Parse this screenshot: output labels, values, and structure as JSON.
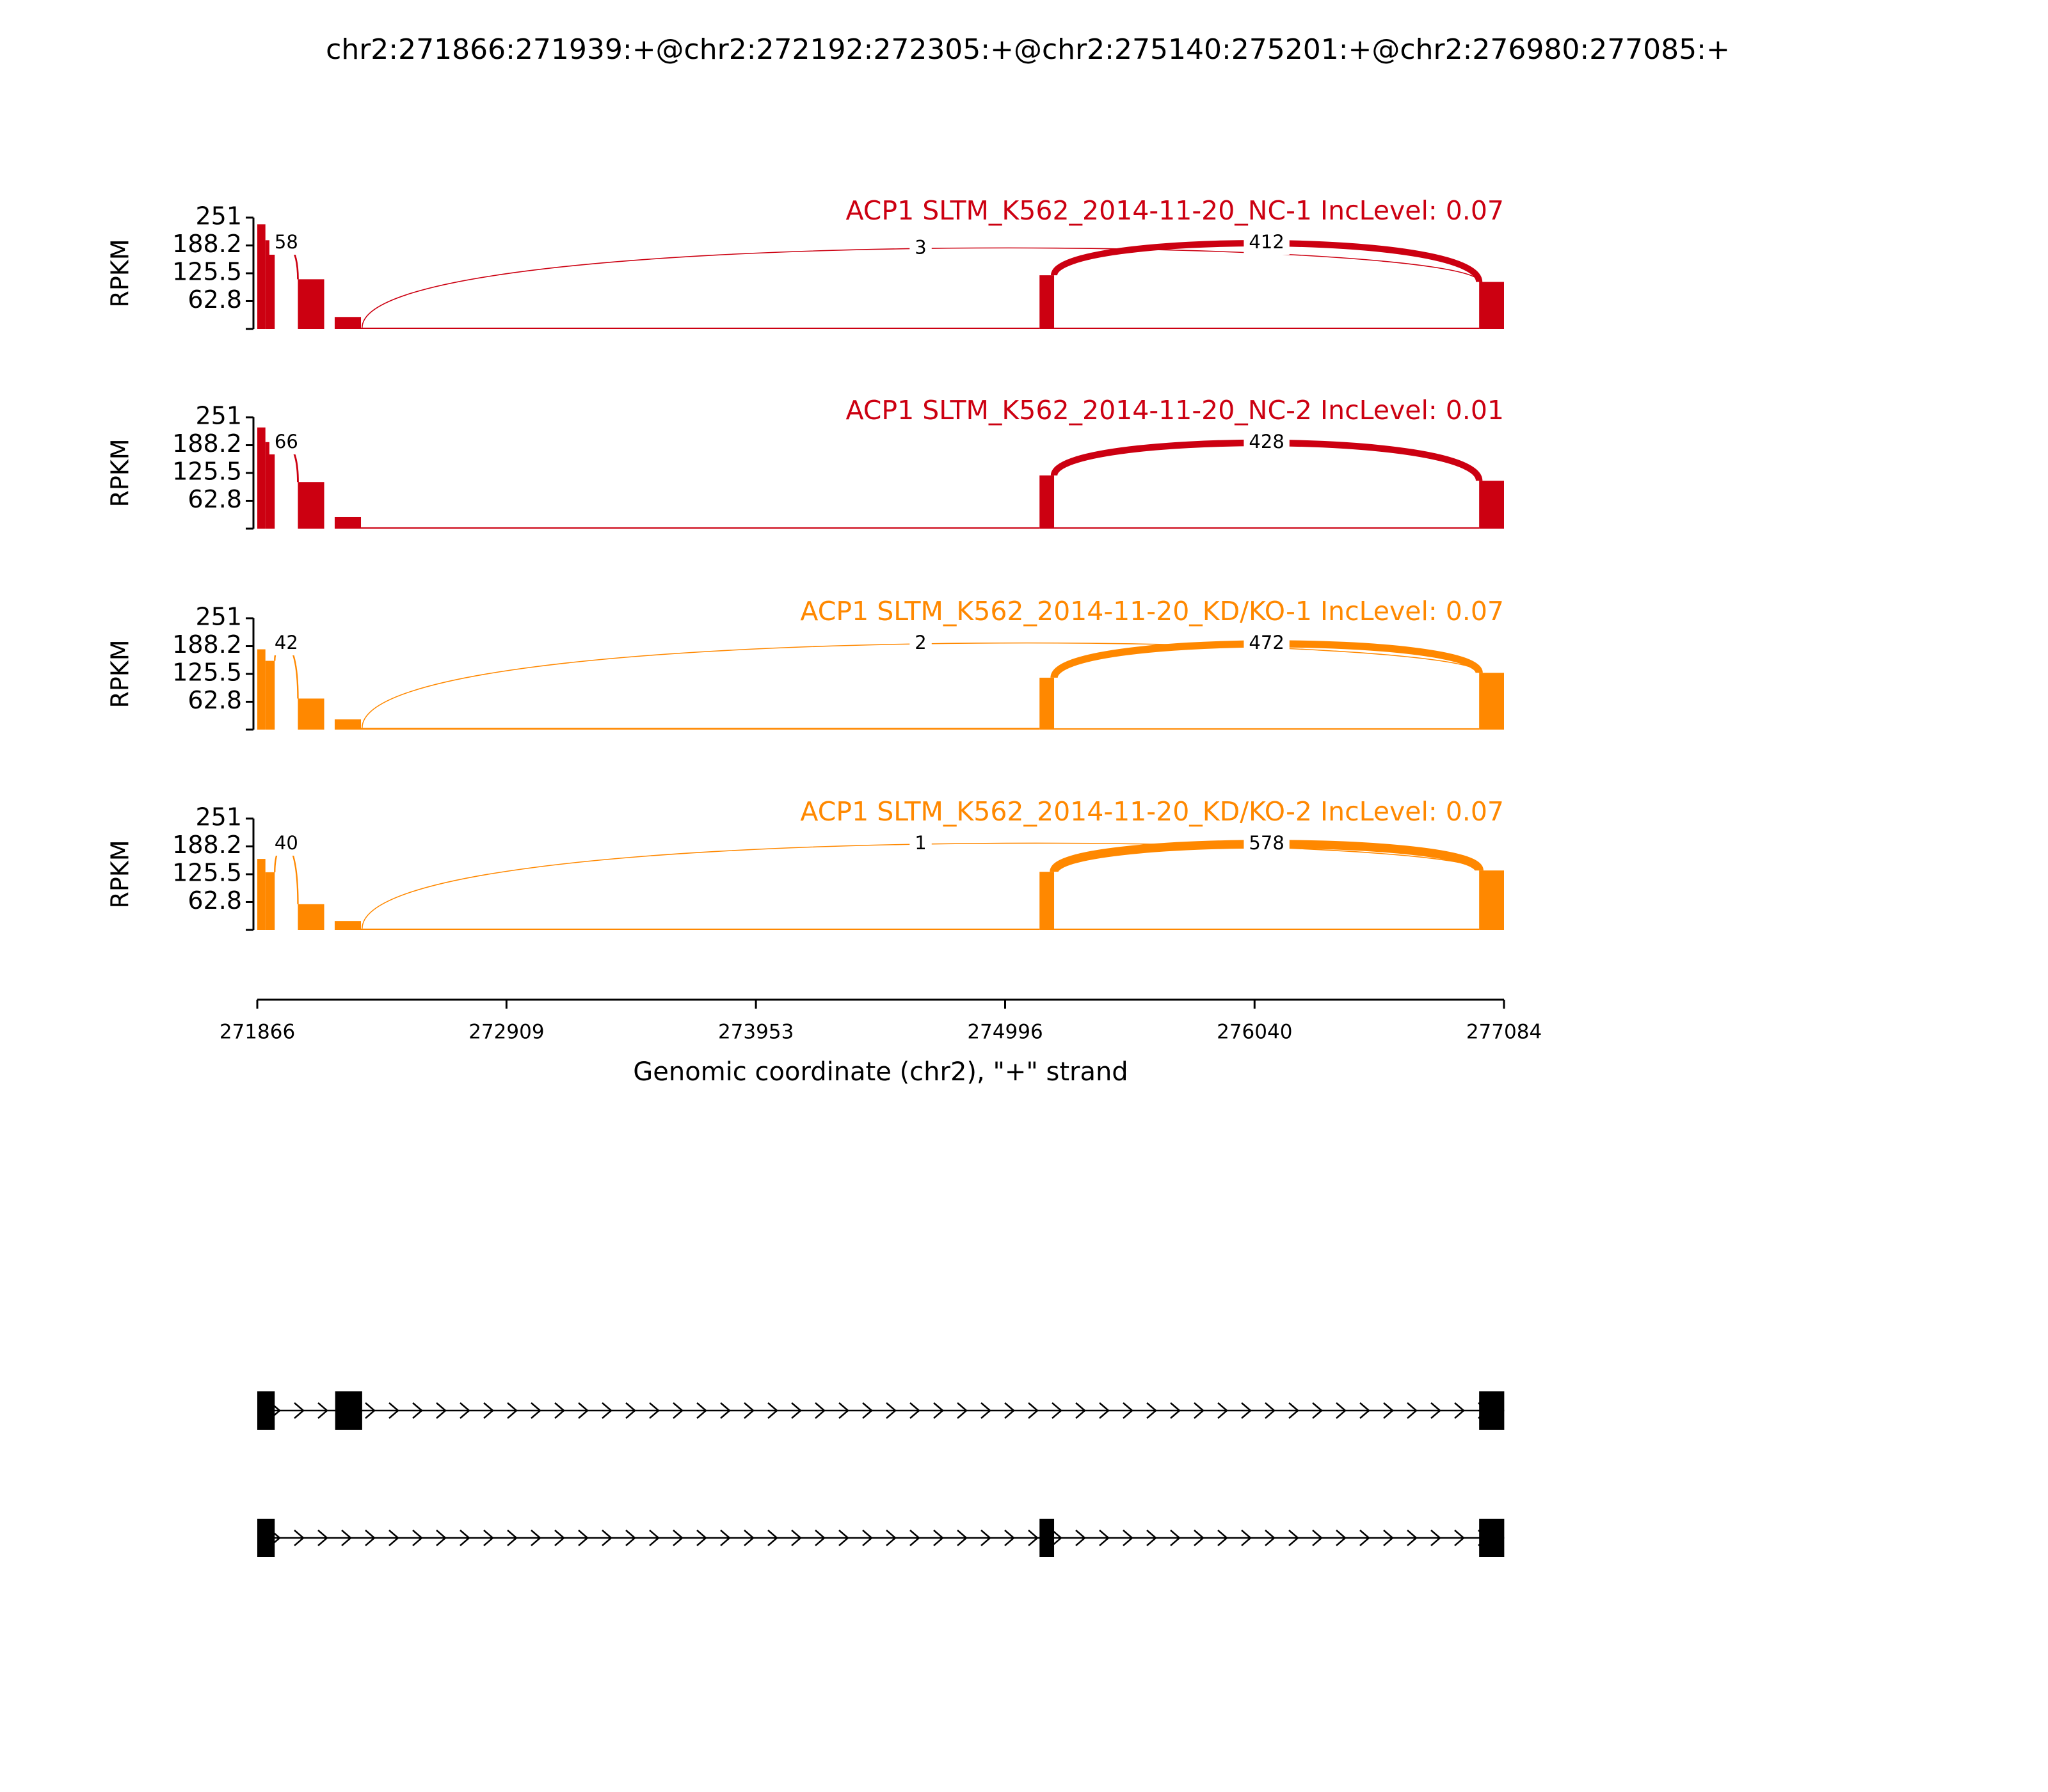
{
  "chart_data": {
    "type": "sashimi",
    "title": "chr2:271866:271939:+@chr2:272192:272305:+@chr2:275140:275201:+@chr2:276980:277085:+",
    "xlim": [
      271866,
      277084
    ],
    "xticks": [
      271866,
      272909,
      273953,
      274996,
      276040,
      277084
    ],
    "xlabel": "Genomic coordinate (chr2), \"+\" strand",
    "panels": [
      {
        "label": "ACP1 SLTM_K562_2014-11-20_NC-1 IncLevel: 0.07",
        "color": "#CC0011",
        "ylabel": "RPKM",
        "ylim": [
          0,
          251
        ],
        "yticks": [
          62.8,
          125.5,
          188.2,
          251
        ],
        "coverage": {
          "start": [
            271866,
            271900,
            271939,
            272036,
            272146,
            272190,
            272300,
            275140,
            275201,
            276980
          ],
          "end": [
            271900,
            271939,
            272036,
            272146,
            272190,
            272300,
            275140,
            275201,
            276980,
            277084
          ],
          "values": [
            236,
            200,
            0,
            112,
            0,
            27,
            3,
            121,
            3,
            106
          ]
        },
        "junctions": [
          {
            "start": 271939,
            "end": 272036,
            "count": 58
          },
          {
            "start": 272305,
            "end": 276980,
            "count": 3
          },
          {
            "start": 275201,
            "end": 276980,
            "count": 412
          }
        ]
      },
      {
        "label": "ACP1 SLTM_K562_2014-11-20_NC-2 IncLevel: 0.01",
        "color": "#CC0011",
        "ylabel": "RPKM",
        "ylim": [
          0,
          251
        ],
        "yticks": [
          62.8,
          125.5,
          188.2,
          251
        ],
        "coverage": {
          "start": [
            271866,
            271900,
            271939,
            272036,
            272146,
            272190,
            272300,
            275140,
            275201,
            276980
          ],
          "end": [
            271900,
            271939,
            272036,
            272146,
            272190,
            272300,
            275140,
            275201,
            276980,
            277084
          ],
          "values": [
            228,
            195,
            0,
            105,
            0,
            26,
            3,
            120,
            3,
            108
          ]
        },
        "junctions": [
          {
            "start": 271939,
            "end": 272036,
            "count": 66
          },
          {
            "start": 275201,
            "end": 276980,
            "count": 428
          }
        ]
      },
      {
        "label": "ACP1 SLTM_K562_2014-11-20_KD/KO-1 IncLevel: 0.07",
        "color": "#FF8800",
        "ylabel": "RPKM",
        "ylim": [
          0,
          251
        ],
        "yticks": [
          62.8,
          125.5,
          188.2,
          251
        ],
        "coverage": {
          "start": [
            271866,
            271900,
            271939,
            272036,
            272146,
            272190,
            272300,
            275140,
            275201,
            276980
          ],
          "end": [
            271900,
            271939,
            272036,
            272146,
            272190,
            272300,
            275140,
            275201,
            276980,
            277084
          ],
          "values": [
            181,
            155,
            0,
            70,
            0,
            23,
            4,
            117,
            3,
            128
          ]
        },
        "junctions": [
          {
            "start": 271939,
            "end": 272036,
            "count": 42
          },
          {
            "start": 272305,
            "end": 276980,
            "count": 2
          },
          {
            "start": 275201,
            "end": 276980,
            "count": 472
          }
        ]
      },
      {
        "label": "ACP1 SLTM_K562_2014-11-20_KD/KO-2 IncLevel: 0.07",
        "color": "#FF8800",
        "ylabel": "RPKM",
        "ylim": [
          0,
          251
        ],
        "yticks": [
          62.8,
          125.5,
          188.2,
          251
        ],
        "coverage": {
          "start": [
            271866,
            271900,
            271939,
            272036,
            272146,
            272190,
            272300,
            275140,
            275201,
            276980
          ],
          "end": [
            271900,
            271939,
            272036,
            272146,
            272190,
            272300,
            275140,
            275201,
            276980,
            277084
          ],
          "values": [
            160,
            130,
            0,
            58,
            0,
            20,
            3,
            131,
            3,
            134
          ]
        },
        "junctions": [
          {
            "start": 271939,
            "end": 272036,
            "count": 40
          },
          {
            "start": 272305,
            "end": 276980,
            "count": 1
          },
          {
            "start": 275201,
            "end": 276980,
            "count": 578
          }
        ]
      }
    ],
    "transcripts": [
      {
        "exons": [
          [
            271866,
            271939
          ],
          [
            272192,
            272305
          ],
          [
            276980,
            277085
          ]
        ]
      },
      {
        "exons": [
          [
            271866,
            271939
          ],
          [
            275140,
            275201
          ],
          [
            276980,
            277085
          ]
        ]
      }
    ]
  }
}
